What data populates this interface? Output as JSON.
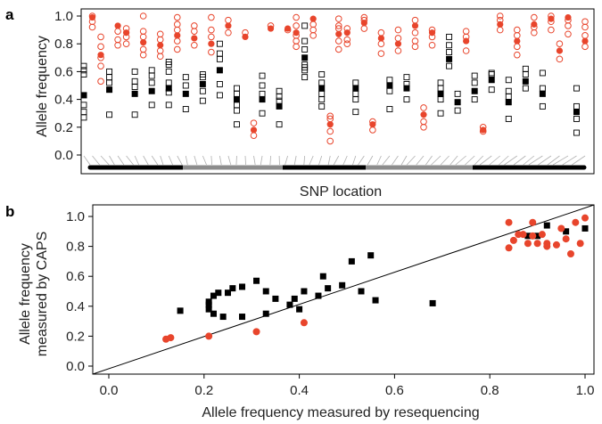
{
  "colors": {
    "red": "#e8452c",
    "black": "#000000",
    "grey": "#8c8c8c"
  },
  "panel_a": {
    "letter": "a",
    "ylabel": "Allele frequency",
    "xlabel": "SNP location",
    "yticks": [
      "0.0",
      "0.2",
      "0.4",
      "0.6",
      "0.8",
      "1.0"
    ]
  },
  "panel_b": {
    "letter": "b",
    "ylabel_line1": "Allele frequency",
    "ylabel_line2": "measured by CAPS",
    "xlabel": "Allele frequency measured by resequencing",
    "xticks": [
      "0.0",
      "0.2",
      "0.4",
      "0.6",
      "0.8",
      "1.0"
    ],
    "yticks": [
      "0.0",
      "0.2",
      "0.4",
      "0.6",
      "0.8",
      "1.0"
    ]
  },
  "chart_data": [
    {
      "type": "scatter",
      "xlabel": "SNP location",
      "ylabel": "Allele frequency",
      "ylim": [
        -0.1,
        1.02
      ],
      "grid": false,
      "columns": [
        {
          "filled": 0.43,
          "open": [
            0.27,
            0.31,
            0.36,
            0.58,
            0.61,
            0.64
          ]
        },
        {
          "filled": 0.99,
          "open": [
            0.92,
            0.96,
            1.0
          ]
        },
        {
          "filled": 0.72,
          "open": [
            0.53,
            0.64,
            0.7,
            0.78,
            0.85
          ]
        },
        {
          "filled": 0.47,
          "open": [
            0.29,
            0.52,
            0.56,
            0.6
          ]
        },
        {
          "filled": 0.93,
          "open": [
            0.79,
            0.83,
            0.89
          ]
        },
        {
          "filled": 0.88,
          "open": [
            0.8,
            0.85,
            0.91
          ]
        },
        {
          "filled": 0.44,
          "open": [
            0.29,
            0.49,
            0.53,
            0.6
          ]
        },
        {
          "filled": 0.81,
          "open": [
            0.72,
            0.76,
            0.85,
            0.89,
            1.0
          ]
        },
        {
          "filled": 0.46,
          "open": [
            0.36,
            0.52,
            0.57,
            0.61
          ]
        },
        {
          "filled": 0.79,
          "open": [
            0.71,
            0.75,
            0.83,
            0.87
          ]
        },
        {
          "filled": 0.48,
          "open": [
            0.36,
            0.45,
            0.52,
            0.6,
            0.65,
            0.67
          ]
        },
        {
          "filled": 0.86,
          "open": [
            0.76,
            0.82,
            0.9,
            0.94,
            0.99
          ]
        },
        {
          "filled": 0.44,
          "open": [
            0.33,
            0.5,
            0.56
          ]
        },
        {
          "filled": 0.84,
          "open": [
            0.79,
            0.89,
            0.93
          ]
        },
        {
          "filled": 0.51,
          "open": [
            0.39,
            0.46,
            0.56,
            0.58
          ]
        },
        {
          "filled": 0.8,
          "open": [
            0.74,
            0.85,
            0.9,
            0.99
          ]
        },
        {
          "filled": 0.61,
          "open": [
            0.43,
            0.51,
            0.69,
            0.73,
            0.8
          ]
        },
        {
          "filled": 0.93,
          "open": [
            0.88,
            0.97
          ]
        },
        {
          "filled": 0.4,
          "open": [
            0.22,
            0.32,
            0.36,
            0.44,
            0.48
          ]
        },
        {
          "filled": 0.85,
          "open": [
            0.88
          ]
        },
        {
          "filled": 0.18,
          "open": [
            0.14,
            0.23
          ]
        },
        {
          "filled": 0.4,
          "open": [
            0.3,
            0.44,
            0.5,
            0.57
          ]
        },
        {
          "filled": 0.91,
          "open": [
            0.93
          ]
        },
        {
          "filled": 0.35,
          "open": [
            0.22,
            0.39,
            0.42,
            0.46
          ]
        },
        {
          "filled": 0.91,
          "open": [
            0.9
          ]
        },
        {
          "filled": 0.88,
          "open": [
            0.78,
            0.82,
            0.86,
            0.93,
            0.99
          ]
        },
        {
          "filled": 0.7,
          "open": [
            0.56,
            0.61,
            0.63,
            0.65,
            0.76,
            0.82,
            0.93
          ]
        },
        {
          "filled": 0.98,
          "open": [
            0.86,
            0.9,
            0.94
          ]
        },
        {
          "filled": 0.48,
          "open": [
            0.35,
            0.4,
            0.44,
            0.52,
            0.58
          ]
        },
        {
          "filled": 0.22,
          "open": [
            0.1,
            0.17,
            0.26,
            0.28
          ]
        },
        {
          "filled": 0.87,
          "open": [
            0.76,
            0.82,
            0.91,
            0.93,
            0.98
          ]
        },
        {
          "filled": 0.88,
          "open": [
            0.8,
            0.83,
            0.91
          ]
        },
        {
          "filled": 0.48,
          "open": [
            0.31,
            0.4,
            0.44,
            0.52
          ]
        },
        {
          "filled": 0.95,
          "open": [
            0.91,
            0.97,
            0.99
          ]
        },
        {
          "filled": 0.22,
          "open": [
            0.18,
            0.24
          ]
        },
        {
          "filled": 0.84,
          "open": [
            0.73,
            0.8,
            0.88
          ]
        },
        {
          "filled": 0.5,
          "open": [
            0.33,
            0.46,
            0.54
          ]
        },
        {
          "filled": 0.8,
          "open": [
            0.75,
            0.84,
            0.9
          ]
        },
        {
          "filled": 0.48,
          "open": [
            0.4,
            0.51,
            0.56
          ]
        },
        {
          "filled": 0.93,
          "open": [
            0.78,
            0.82,
            0.88,
            0.97
          ]
        },
        {
          "filled": 0.29,
          "open": [
            0.2,
            0.24,
            0.34
          ]
        },
        {
          "filled": 0.88,
          "open": [
            0.79,
            0.85,
            0.9
          ]
        },
        {
          "filled": 0.44,
          "open": [
            0.3,
            0.4,
            0.48,
            0.52
          ]
        },
        {
          "filled": 0.69,
          "open": [
            0.64,
            0.74,
            0.79,
            0.85
          ]
        },
        {
          "filled": 0.38,
          "open": [
            0.32,
            0.44
          ]
        },
        {
          "filled": 0.82,
          "open": [
            0.75,
            0.85,
            0.89
          ]
        },
        {
          "filled": 0.46,
          "open": [
            0.4,
            0.52,
            0.57
          ]
        },
        {
          "filled": 0.18,
          "open": [
            0.17,
            0.2
          ]
        },
        {
          "filled": 0.54,
          "open": [
            0.47,
            0.58,
            0.59
          ]
        },
        {
          "filled": 0.94,
          "open": [
            0.9,
            0.97,
            1.0
          ]
        },
        {
          "filled": 0.38,
          "open": [
            0.26,
            0.42,
            0.46,
            0.54
          ]
        },
        {
          "filled": 0.82,
          "open": [
            0.72,
            0.78,
            0.86,
            0.9
          ]
        },
        {
          "filled": 0.53,
          "open": [
            0.48,
            0.58,
            0.62
          ]
        },
        {
          "filled": 0.94,
          "open": [
            0.88,
            0.92,
            0.99
          ]
        },
        {
          "filled": 0.44,
          "open": [
            0.35,
            0.48,
            0.59
          ]
        },
        {
          "filled": 0.98,
          "open": [
            0.9,
            0.96,
            1.0
          ]
        },
        {
          "filled": 0.75,
          "open": [
            0.69,
            0.8
          ]
        },
        {
          "filled": 0.99,
          "open": [
            0.87,
            0.93,
            0.97
          ]
        },
        {
          "filled": 0.31,
          "open": [
            0.16,
            0.26,
            0.35,
            0.48
          ]
        },
        {
          "filled": 0.82,
          "open": [
            0.78,
            0.86,
            0.92,
            0.96
          ]
        }
      ]
    },
    {
      "type": "scatter",
      "xlabel": "Allele frequency measured by resequencing",
      "ylabel": "Allele frequency measured by CAPS",
      "xlim": [
        -0.04,
        1.02
      ],
      "ylim": [
        -0.01,
        1.05
      ],
      "grid": false,
      "diagonal": [
        0,
        1
      ],
      "series": [
        {
          "marker": "square",
          "color": "black",
          "points": [
            [
              0.15,
              0.37
            ],
            [
              0.21,
              0.43
            ],
            [
              0.21,
              0.41
            ],
            [
              0.21,
              0.38
            ],
            [
              0.22,
              0.47
            ],
            [
              0.22,
              0.35
            ],
            [
              0.23,
              0.49
            ],
            [
              0.24,
              0.33
            ],
            [
              0.25,
              0.49
            ],
            [
              0.26,
              0.52
            ],
            [
              0.28,
              0.33
            ],
            [
              0.28,
              0.53
            ],
            [
              0.31,
              0.57
            ],
            [
              0.33,
              0.35
            ],
            [
              0.33,
              0.5
            ],
            [
              0.35,
              0.45
            ],
            [
              0.38,
              0.41
            ],
            [
              0.39,
              0.45
            ],
            [
              0.4,
              0.38
            ],
            [
              0.41,
              0.5
            ],
            [
              0.44,
              0.47
            ],
            [
              0.45,
              0.6
            ],
            [
              0.46,
              0.52
            ],
            [
              0.49,
              0.54
            ],
            [
              0.51,
              0.7
            ],
            [
              0.53,
              0.5
            ],
            [
              0.55,
              0.74
            ],
            [
              0.56,
              0.44
            ],
            [
              0.68,
              0.42
            ],
            [
              0.88,
              0.87
            ],
            [
              0.9,
              0.87
            ],
            [
              0.92,
              0.94
            ],
            [
              0.96,
              0.9
            ],
            [
              1.0,
              0.92
            ]
          ]
        },
        {
          "marker": "circle",
          "color": "red",
          "points": [
            [
              0.12,
              0.18
            ],
            [
              0.13,
              0.19
            ],
            [
              0.21,
              0.2
            ],
            [
              0.31,
              0.23
            ],
            [
              0.41,
              0.29
            ],
            [
              0.84,
              0.79
            ],
            [
              0.84,
              0.96
            ],
            [
              0.85,
              0.84
            ],
            [
              0.86,
              0.88
            ],
            [
              0.87,
              0.88
            ],
            [
              0.88,
              0.82
            ],
            [
              0.89,
              0.96
            ],
            [
              0.89,
              0.87
            ],
            [
              0.9,
              0.82
            ],
            [
              0.91,
              0.88
            ],
            [
              0.92,
              0.8
            ],
            [
              0.92,
              0.82
            ],
            [
              0.94,
              0.81
            ],
            [
              0.95,
              0.92
            ],
            [
              0.96,
              0.85
            ],
            [
              0.97,
              0.75
            ],
            [
              0.98,
              0.96
            ],
            [
              0.99,
              0.82
            ],
            [
              1.0,
              0.99
            ]
          ]
        }
      ]
    }
  ]
}
